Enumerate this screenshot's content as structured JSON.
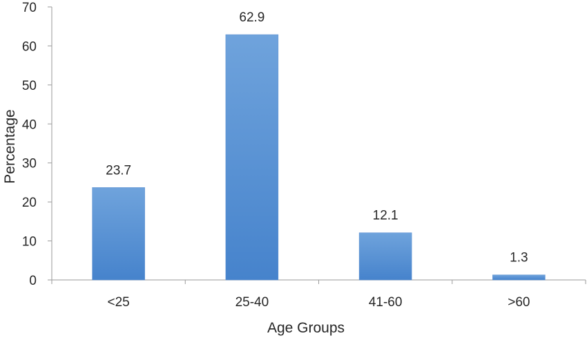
{
  "chart_data": {
    "type": "bar",
    "categories": [
      "<25",
      "25-40",
      "41-60",
      ">60"
    ],
    "values": [
      23.7,
      62.9,
      12.1,
      1.3
    ],
    "data_labels": [
      "23.7",
      "62.9",
      "12.1",
      "1.3"
    ],
    "xlabel": "Age Groups",
    "ylabel": "Percentage",
    "ylim": [
      0,
      70
    ],
    "yticks": [
      0,
      10,
      20,
      30,
      40,
      50,
      60,
      70
    ],
    "ytick_labels": [
      "0",
      "10",
      "20",
      "30",
      "40",
      "50",
      "60",
      "70"
    ],
    "grid": false,
    "legend": "none",
    "colors": {
      "bar_top": "#6fa3dc",
      "bar_bottom": "#4683cc",
      "axis": "#9a9a9a",
      "text": "#262626"
    }
  }
}
